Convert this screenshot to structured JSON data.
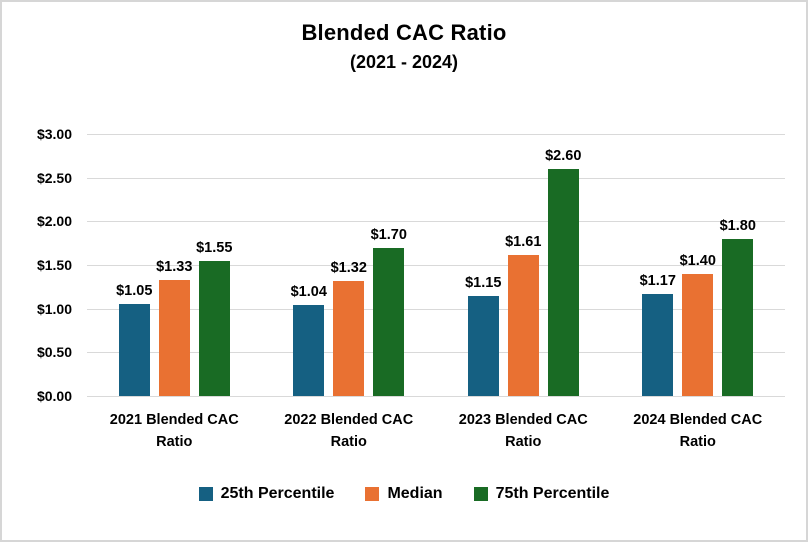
{
  "chart_data": {
    "type": "bar",
    "title": "Blended CAC Ratio",
    "subtitle": "(2021 - 2024)",
    "categories": [
      "2021 Blended CAC Ratio",
      "2022 Blended CAC Ratio",
      "2023 Blended CAC Ratio",
      "2024 Blended CAC Ratio"
    ],
    "series": [
      {
        "name": "25th Percentile",
        "color": "#156082",
        "values": [
          1.05,
          1.04,
          1.15,
          1.17
        ],
        "labels": [
          "$1.05",
          "$1.04",
          "$1.15",
          "$1.17"
        ]
      },
      {
        "name": "Median",
        "color": "#E97132",
        "values": [
          1.33,
          1.32,
          1.61,
          1.4
        ],
        "labels": [
          "$1.33",
          "$1.32",
          "$1.61",
          "$1.40"
        ]
      },
      {
        "name": "75th Percentile",
        "color": "#196B24",
        "values": [
          1.55,
          1.7,
          2.6,
          1.8
        ],
        "labels": [
          "$1.55",
          "$1.70",
          "$2.60",
          "$1.80"
        ]
      }
    ],
    "y_ticks": [
      "$3.00",
      "$2.50",
      "$2.00",
      "$1.50",
      "$1.00",
      "$0.50",
      "$0.00"
    ],
    "ylim": [
      0,
      3
    ],
    "grid": true,
    "gridline_color": "#d9d9d9",
    "legend_position": "bottom",
    "background_color": "#ffffff",
    "border_color": "#d6d6d6"
  }
}
